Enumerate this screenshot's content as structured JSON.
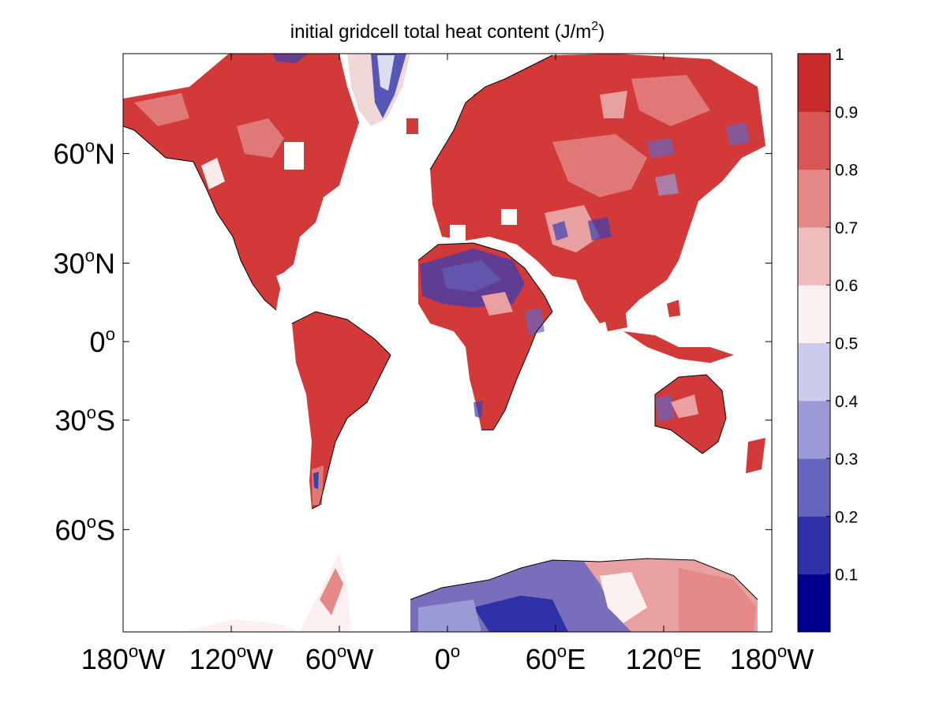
{
  "chart_data": {
    "type": "heatmap",
    "title": "initial gridcell total heat content (J/m",
    "title_superscript": "2",
    "title_suffix": ")",
    "projection": "mercator",
    "longitude_ticks": [
      {
        "value": -180,
        "num": "180",
        "hemi": "W"
      },
      {
        "value": -120,
        "num": "120",
        "hemi": "W"
      },
      {
        "value": -60,
        "num": "60",
        "hemi": "W"
      },
      {
        "value": 0,
        "num": "0",
        "hemi": ""
      },
      {
        "value": 60,
        "num": "60",
        "hemi": "E"
      },
      {
        "value": 120,
        "num": "120",
        "hemi": "E"
      },
      {
        "value": 180,
        "num": "180",
        "hemi": "W"
      }
    ],
    "latitude_ticks": [
      {
        "value": 60,
        "num": "60",
        "hemi": "N"
      },
      {
        "value": 30,
        "num": "30",
        "hemi": "N"
      },
      {
        "value": 0,
        "num": "0",
        "hemi": ""
      },
      {
        "value": -30,
        "num": "30",
        "hemi": "S"
      },
      {
        "value": -60,
        "num": "60",
        "hemi": "S"
      }
    ],
    "degree_symbol": "o",
    "colorbar": {
      "range": [
        0,
        1
      ],
      "tick_labels": [
        "0.1",
        "0.2",
        "0.3",
        "0.4",
        "0.5",
        "0.6",
        "0.7",
        "0.8",
        "0.9",
        "1"
      ],
      "colors": [
        "#00008f",
        "#2f31a8",
        "#6565bf",
        "#9a9bd6",
        "#cbcbeb",
        "#fbf1f1",
        "#efbcbc",
        "#e48888",
        "#d75656",
        "#ca2a2a"
      ]
    },
    "contour_labels": [
      "0.5",
      "0.4",
      "0.3",
      "0.6",
      "0.7",
      "0.8",
      "0.9"
    ]
  }
}
